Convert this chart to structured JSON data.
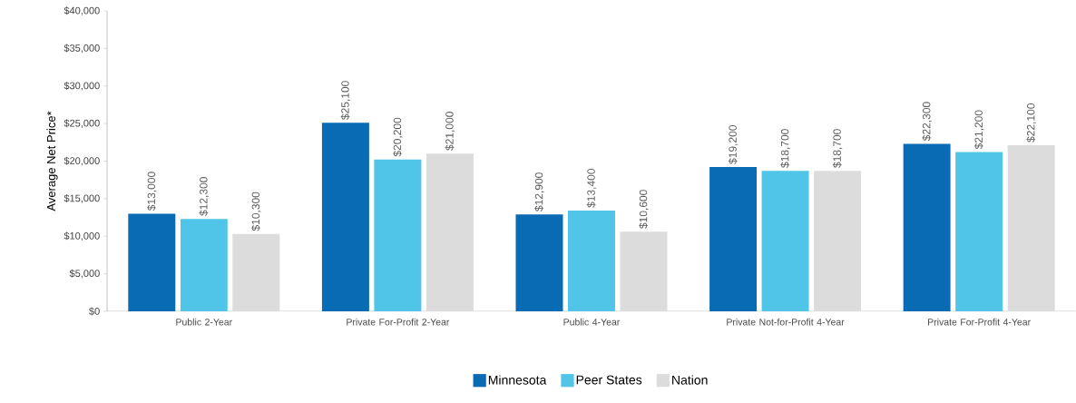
{
  "chart_data": {
    "type": "bar",
    "ylabel": "Average Net Price*",
    "categories": [
      "Public 2-Year",
      "Private For-Profit 2-Year",
      "Public 4-Year",
      "Private Not-for-Profit 4-Year",
      "Private For-Profit 4-Year"
    ],
    "series": [
      {
        "name": "Minnesota",
        "color": "#0a6bb5",
        "values": [
          13000,
          25100,
          12900,
          19200,
          22300
        ],
        "value_labels": [
          "$13,000",
          "$25,100",
          "$12,900",
          "$19,200",
          "$22,300"
        ]
      },
      {
        "name": "Peer States",
        "color": "#50c5e8",
        "values": [
          12300,
          20200,
          13400,
          18700,
          21200
        ],
        "value_labels": [
          "$12,300",
          "$20,200",
          "$13,400",
          "$18,700",
          "$21,200"
        ]
      },
      {
        "name": "Nation",
        "color": "#dcdcdc",
        "values": [
          10300,
          21000,
          10600,
          18700,
          22100
        ],
        "value_labels": [
          "$10,300",
          "$21,000",
          "$10,600",
          "$18,700",
          "$22,100"
        ]
      }
    ],
    "ylim": [
      0,
      40000
    ],
    "yticks": [
      {
        "value": 0,
        "label": "$0"
      },
      {
        "value": 5000,
        "label": "$5,000"
      },
      {
        "value": 10000,
        "label": "$10,000"
      },
      {
        "value": 15000,
        "label": "$15,000"
      },
      {
        "value": 20000,
        "label": "$20,000"
      },
      {
        "value": 25000,
        "label": "$25,000"
      },
      {
        "value": 30000,
        "label": "$30,000"
      },
      {
        "value": 35000,
        "label": "$35,000"
      },
      {
        "value": 40000,
        "label": "$40,000"
      }
    ],
    "grid": false,
    "legend": "bottom"
  }
}
